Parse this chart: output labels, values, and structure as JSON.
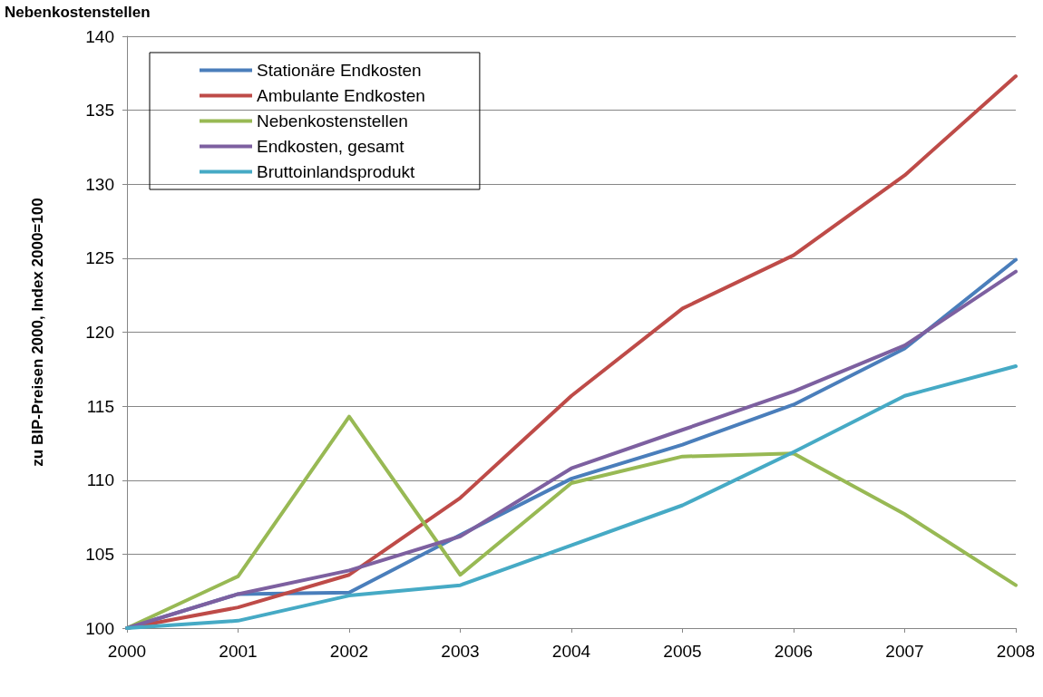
{
  "chart_data": {
    "type": "line",
    "title": "Nebenkostenstellen",
    "ylabel": "zu BIP-Preisen 2000, Index 2000=100",
    "categories": [
      "2000",
      "2001",
      "2002",
      "2003",
      "2004",
      "2005",
      "2006",
      "2007",
      "2008"
    ],
    "ylim": [
      100,
      140
    ],
    "yticks": [
      100,
      105,
      110,
      115,
      120,
      125,
      130,
      135,
      140
    ],
    "grid": "y",
    "legend": "top left",
    "marker": "none",
    "line_style": "solid",
    "series": [
      {
        "name": "Stationäre Endkosten",
        "color": "#4a7ebb",
        "values": [
          100,
          102.3,
          102.4,
          106.3,
          110.1,
          112.4,
          115.1,
          118.9,
          124.9
        ]
      },
      {
        "name": "Ambulante Endkosten",
        "color": "#be4b48",
        "values": [
          100,
          101.4,
          103.6,
          108.8,
          115.7,
          121.6,
          125.2,
          130.6,
          137.3
        ]
      },
      {
        "name": "Nebenkostenstellen",
        "color": "#98b954",
        "values": [
          100,
          103.5,
          114.3,
          103.6,
          109.8,
          111.6,
          111.8,
          107.7,
          102.9
        ]
      },
      {
        "name": "Endkosten, gesamt",
        "color": "#7d60a0",
        "values": [
          100,
          102.3,
          103.9,
          106.2,
          110.8,
          113.4,
          116.0,
          119.1,
          124.1
        ]
      },
      {
        "name": "Bruttoinlandsprodukt",
        "color": "#46aac5",
        "values": [
          100,
          100.5,
          102.2,
          102.9,
          105.6,
          108.3,
          111.9,
          115.7,
          117.7
        ]
      }
    ]
  }
}
